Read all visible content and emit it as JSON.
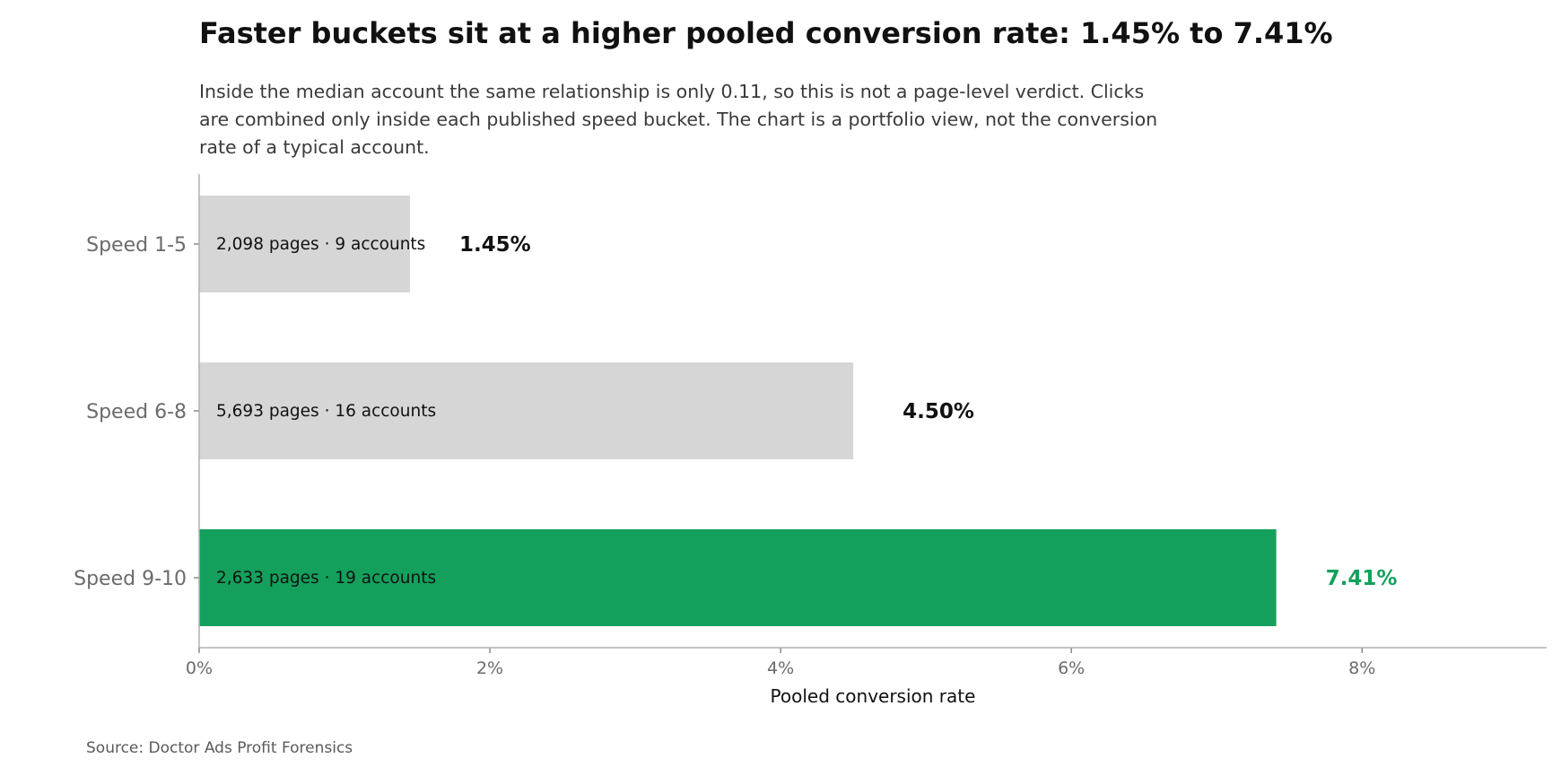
{
  "chart_data": {
    "type": "bar",
    "orientation": "horizontal",
    "title": "Faster buckets sit at a higher pooled conversion rate: 1.45% to 7.41%",
    "subtitle_lines": [
      "Inside the median account the same relationship is only 0.11, so this is not a page-level verdict. Clicks",
      "are combined only inside each published speed bucket. The chart is a portfolio view, not the conversion",
      "rate of a typical account."
    ],
    "categories": [
      "Speed 1-5",
      "Speed 6-8",
      "Speed 9-10"
    ],
    "values": [
      1.45,
      4.5,
      7.41
    ],
    "value_labels": [
      "1.45%",
      "4.50%",
      "7.41%"
    ],
    "bar_annotations": [
      "2,098 pages · 9 accounts",
      "5,693 pages · 16 accounts",
      "2,633 pages · 19 accounts"
    ],
    "bar_colors": [
      "#d6d6d6",
      "#d6d6d6",
      "#14a05c"
    ],
    "value_label_colors": [
      "#111111",
      "#111111",
      "#14a05c"
    ],
    "xlabel": "Pooled conversion rate",
    "ylabel": "",
    "xlim": [
      0,
      9.27
    ],
    "xticks": [
      0,
      2,
      4,
      6,
      8
    ],
    "xtick_labels": [
      "0%",
      "2%",
      "4%",
      "6%",
      "8%"
    ],
    "grid": false,
    "source": "Source: Doctor Ads Profit Forensics"
  }
}
